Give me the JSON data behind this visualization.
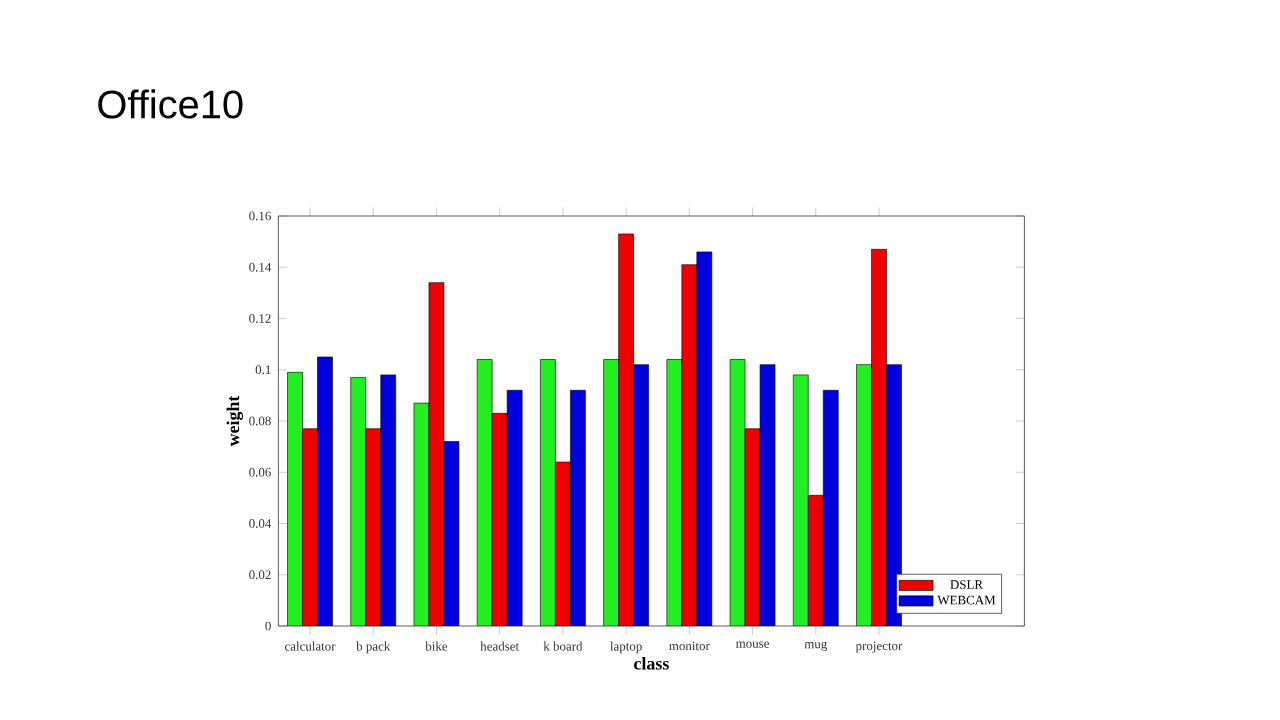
{
  "chart_data": {
    "type": "bar",
    "title": "Office10",
    "xlabel": "class",
    "ylabel": "weight",
    "categories": [
      "calculator",
      "b pack",
      "bike",
      "headset",
      "k board",
      "laptop",
      "monitor",
      "mouse",
      "mug",
      "projector"
    ],
    "series": [
      {
        "color": "#22ee22",
        "values": [
          0.099,
          0.097,
          0.087,
          0.104,
          0.104,
          0.104,
          0.104,
          0.104,
          0.098,
          0.102
        ]
      },
      {
        "name": "DSLR",
        "color": "#ee0000",
        "values": [
          0.077,
          0.077,
          0.134,
          0.083,
          0.064,
          0.153,
          0.141,
          0.077,
          0.051,
          0.147
        ]
      },
      {
        "name": "WEBCAM",
        "color": "#0000dd",
        "values": [
          0.105,
          0.098,
          0.072,
          0.092,
          0.092,
          0.102,
          0.146,
          0.102,
          0.092,
          0.102
        ]
      }
    ],
    "ylim": [
      0,
      0.16
    ],
    "yticks": [
      0,
      0.02,
      0.04,
      0.06,
      0.08,
      0.1,
      0.12,
      0.14,
      0.16
    ],
    "grid": false,
    "legend": "bottom right"
  }
}
